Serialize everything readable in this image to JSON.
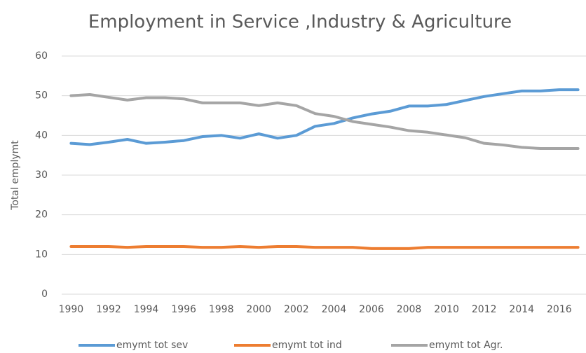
{
  "chart_data": {
    "type": "line",
    "title": "Employment in Service ,Industry & Agriculture",
    "y_label": "Total emplymt",
    "x": [
      1990,
      1991,
      1992,
      1993,
      1994,
      1995,
      1996,
      1997,
      1998,
      1999,
      2000,
      2001,
      2002,
      2003,
      2004,
      2005,
      2006,
      2007,
      2008,
      2009,
      2010,
      2011,
      2012,
      2013,
      2014,
      2015,
      2016,
      2017
    ],
    "xlim": [
      1989.5,
      2017.5
    ],
    "xticks": [
      1990,
      1992,
      1994,
      1996,
      1998,
      2000,
      2002,
      2004,
      2006,
      2008,
      2010,
      2012,
      2014,
      2016
    ],
    "ylim": [
      0,
      60
    ],
    "yticks": [
      0,
      10,
      20,
      30,
      40,
      50,
      60
    ],
    "grid": true,
    "series": [
      {
        "name": "emymt tot sev",
        "color": "#5b9bd5",
        "values": [
          38,
          37.7,
          38.3,
          39,
          38,
          38.3,
          38.7,
          39.7,
          40,
          39.3,
          40.4,
          39.3,
          40,
          42.3,
          43,
          44.4,
          45.4,
          46.1,
          47.4,
          47.4,
          47.8,
          48.8,
          49.8,
          50.5,
          51.2,
          51.2,
          51.5,
          51.5
        ]
      },
      {
        "name": "emymt tot ind",
        "color": "#ed7d31",
        "values": [
          12,
          12,
          12,
          11.8,
          12,
          12,
          12,
          11.8,
          11.8,
          12,
          11.8,
          12,
          12,
          11.8,
          11.8,
          11.8,
          11.5,
          11.5,
          11.5,
          11.8,
          11.8,
          11.8,
          11.8,
          11.8,
          11.8,
          11.8,
          11.8,
          11.8
        ]
      },
      {
        "name": "emymt tot Agr.",
        "color": "#a5a5a5",
        "values": [
          50,
          50.3,
          49.6,
          48.9,
          49.5,
          49.5,
          49.2,
          48.2,
          48.2,
          48.2,
          47.5,
          48.2,
          47.5,
          45.5,
          44.8,
          43.5,
          42.8,
          42.1,
          41.2,
          40.8,
          40.1,
          39.4,
          38,
          37.6,
          37,
          36.7,
          36.7,
          36.7
        ]
      }
    ],
    "legend": "bottom"
  }
}
